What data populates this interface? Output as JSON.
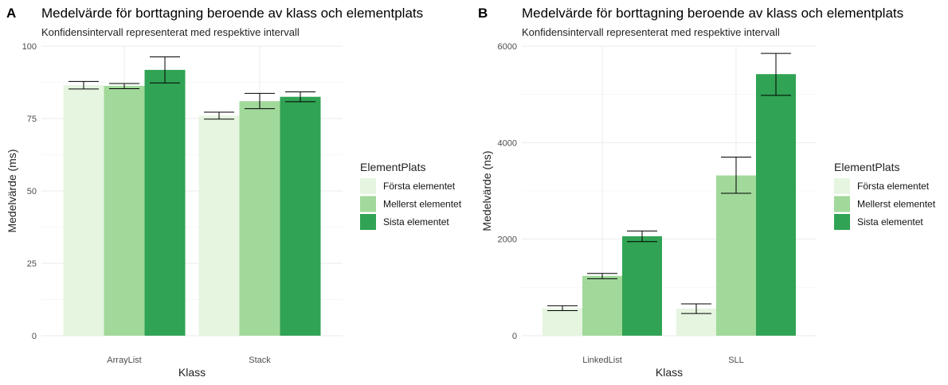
{
  "chart_data": [
    {
      "tag": "A",
      "type": "bar",
      "title": "Medelvärde för borttagning beroende av klass och elementplats",
      "subtitle": "Konfidensintervall representerat med respektive intervall",
      "xlabel": "Klass",
      "ylabel": "Medelvärde (ms)",
      "ylim": [
        0,
        100
      ],
      "yticks": [
        0,
        25,
        50,
        75,
        100
      ],
      "ytick_labels": [
        "0",
        "25",
        "50",
        "75",
        "100"
      ],
      "categories": [
        "ArrayList",
        "Stack"
      ],
      "grid": true,
      "legend_title": "ElementPlats",
      "legend_position": "right",
      "series": [
        {
          "name": "Första elementet",
          "color": "#e5f5e0",
          "values": [
            86.5,
            76.0
          ],
          "err_low": [
            85.2,
            74.8
          ],
          "err_high": [
            87.8,
            77.2
          ]
        },
        {
          "name": "Mellerst elementet",
          "color": "#a1d99b",
          "values": [
            86.3,
            81.0
          ],
          "err_low": [
            85.3,
            78.4
          ],
          "err_high": [
            87.1,
            83.7
          ]
        },
        {
          "name": "Sista elementet",
          "color": "#31a354",
          "values": [
            91.8,
            82.5
          ],
          "err_low": [
            87.3,
            80.8
          ],
          "err_high": [
            96.3,
            84.2
          ]
        }
      ]
    },
    {
      "tag": "B",
      "type": "bar",
      "title": "Medelvärde för borttagning beroende av klass och elementplats",
      "subtitle": "Konfidensintervall representerat med respektive intervall",
      "xlabel": "Klass",
      "ylabel": "Medelvärde (ns)",
      "ylim": [
        0,
        6000
      ],
      "yticks": [
        0,
        2000,
        4000,
        6000
      ],
      "ytick_labels": [
        "0",
        "2000",
        "4000",
        "6000"
      ],
      "categories": [
        "LinkedList",
        "SLL"
      ],
      "grid": true,
      "legend_title": "ElementPlats",
      "legend_position": "right",
      "series": [
        {
          "name": "Första elementet",
          "color": "#e5f5e0",
          "values": [
            570,
            560
          ],
          "err_low": [
            520,
            460
          ],
          "err_high": [
            620,
            660
          ]
        },
        {
          "name": "Mellerst elementet",
          "color": "#a1d99b",
          "values": [
            1240,
            3320
          ],
          "err_low": [
            1180,
            2950
          ],
          "err_high": [
            1290,
            3700
          ]
        },
        {
          "name": "Sista elementet",
          "color": "#31a354",
          "values": [
            2060,
            5420
          ],
          "err_low": [
            1950,
            4980
          ],
          "err_high": [
            2170,
            5850
          ]
        }
      ]
    }
  ]
}
